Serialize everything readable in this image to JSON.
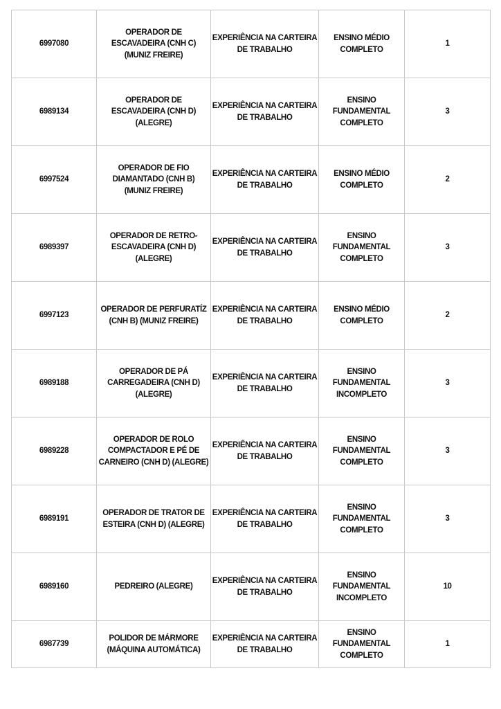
{
  "rows": [
    {
      "code": "6997080",
      "role": "OPERADOR DE\nESCAVADEIRA (CNH C)\n(MUNIZ FREIRE)",
      "experience": "EXPERIÊNCIA NA CARTEIRA\nDE TRABALHO",
      "education": "ENSINO MÉDIO\nCOMPLETO",
      "vacancies": "1"
    },
    {
      "code": "6989134",
      "role": "OPERADOR DE\nESCAVADEIRA (CNH D)\n(ALEGRE)",
      "experience": "EXPERIÊNCIA NA CARTEIRA\nDE TRABALHO",
      "education": "ENSINO\nFUNDAMENTAL\nCOMPLETO",
      "vacancies": "3"
    },
    {
      "code": "6997524",
      "role": "OPERADOR DE FIO\nDIAMANTADO (CNH B)\n(MUNIZ FREIRE)",
      "experience": "EXPERIÊNCIA NA CARTEIRA\nDE TRABALHO",
      "education": "ENSINO MÉDIO\nCOMPLETO",
      "vacancies": "2"
    },
    {
      "code": "6989397",
      "role": "OPERADOR DE RETRO-\nESCAVADEIRA (CNH D)\n(ALEGRE)",
      "experience": "EXPERIÊNCIA NA CARTEIRA\nDE TRABALHO",
      "education": "ENSINO\nFUNDAMENTAL\nCOMPLETO",
      "vacancies": "3"
    },
    {
      "code": "6997123",
      "role": "OPERADOR DE PERFURATÍZ\n(CNH B) (MUNIZ FREIRE)",
      "experience": "EXPERIÊNCIA NA CARTEIRA\nDE TRABALHO",
      "education": "ENSINO MÉDIO\nCOMPLETO",
      "vacancies": "2"
    },
    {
      "code": "6989188",
      "role": "OPERADOR DE PÁ\nCARREGADEIRA (CNH D)\n(ALEGRE)",
      "experience": "EXPERIÊNCIA NA CARTEIRA\nDE TRABALHO",
      "education": "ENSINO\nFUNDAMENTAL\nINCOMPLETO",
      "vacancies": "3"
    },
    {
      "code": "6989228",
      "role": "OPERADOR DE ROLO\nCOMPACTADOR E PÉ DE\nCARNEIRO (CNH D) (ALEGRE)",
      "experience": "EXPERIÊNCIA NA CARTEIRA\nDE TRABALHO",
      "education": "ENSINO\nFUNDAMENTAL\nCOMPLETO",
      "vacancies": "3"
    },
    {
      "code": "6989191",
      "role": "OPERADOR DE TRATOR DE\nESTEIRA (CNH D) (ALEGRE)",
      "experience": "EXPERIÊNCIA NA CARTEIRA\nDE TRABALHO",
      "education": "ENSINO\nFUNDAMENTAL\nCOMPLETO",
      "vacancies": "3"
    },
    {
      "code": "6989160",
      "role": "PEDREIRO (ALEGRE)",
      "experience": "EXPERIÊNCIA NA CARTEIRA\nDE TRABALHO",
      "education": "ENSINO\nFUNDAMENTAL\nINCOMPLETO",
      "vacancies": "10"
    },
    {
      "code": "6987739",
      "role": "POLIDOR DE MÁRMORE\n(MÁQUINA AUTOMÁTICA)",
      "experience": "EXPERIÊNCIA NA CARTEIRA\nDE TRABALHO",
      "education": "ENSINO\nFUNDAMENTAL\nCOMPLETO",
      "vacancies": "1"
    }
  ]
}
